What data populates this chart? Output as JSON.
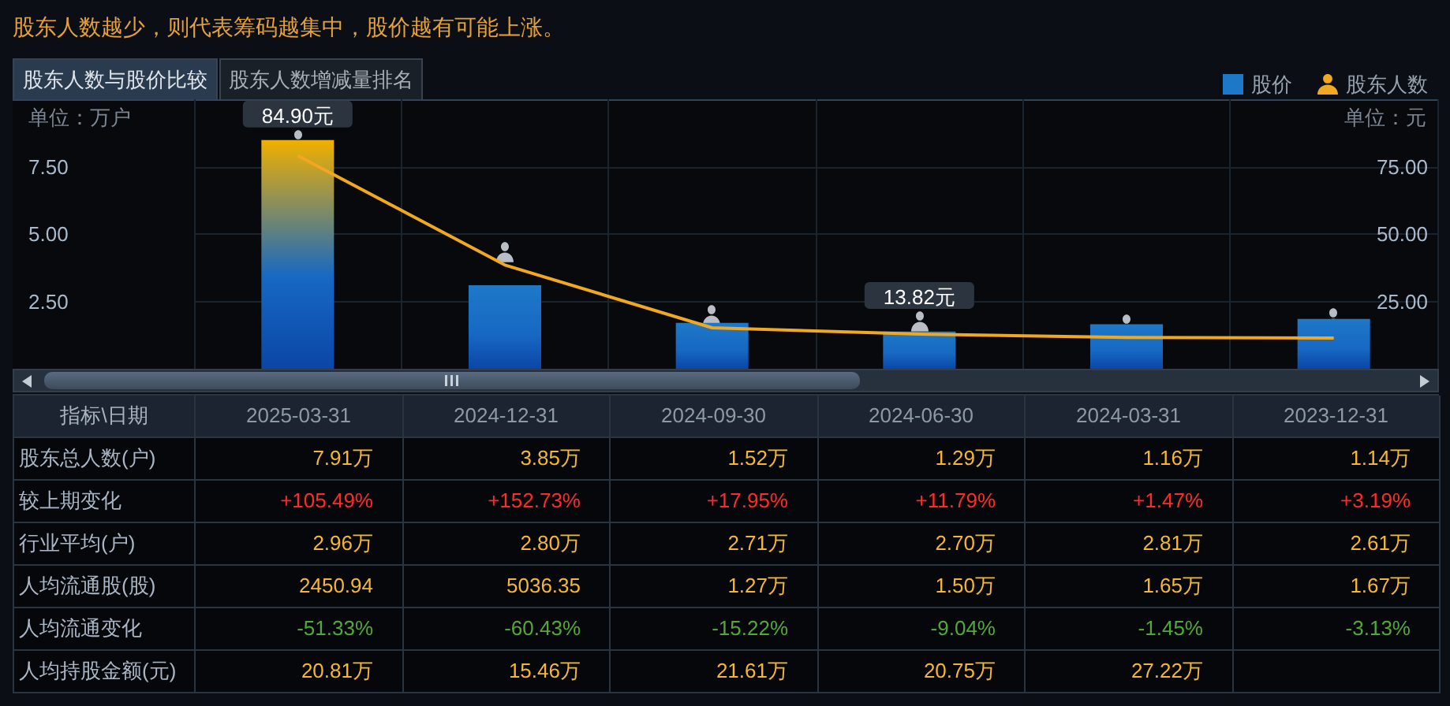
{
  "chart_data": [
    {
      "type": "bar",
      "title": "股东人数越少，则代表筹码越集中，股价越有可能上涨。",
      "subtitle": "股东人数与股价比较",
      "annotations": [
        "股东人数增减量排名"
      ],
      "ylabel": "单位：万户",
      "y2label": "单位：元",
      "categories": [
        null,
        null,
        null,
        null,
        null,
        null
      ],
      "tick_labels": "y",
      "ylim": [
        0,
        10
      ],
      "yticks": [
        {
          "value": 2.5,
          "label": "2.50"
        },
        {
          "value": 5,
          "label": "5.00"
        },
        {
          "value": 7.5,
          "label": "7.50"
        }
      ],
      "y2lim": [
        0,
        100
      ],
      "y2ticks": [
        {
          "value": 25,
          "label": "25.00"
        },
        {
          "value": 50,
          "label": "50.00"
        },
        {
          "value": 75,
          "label": "75.00"
        }
      ],
      "grid": true,
      "legend": "top right",
      "series": [
        {
          "name": "股价",
          "type": "bar",
          "axis": "y2",
          "color": "#1e78c8",
          "colors": [
            "#f0b000",
            "#1e78c8",
            "#1e78c8",
            "#1e78c8",
            "#1e78c8",
            "#1e78c8"
          ],
          "values": [
            84.9,
            31,
            17,
            13.82,
            16.5,
            18.5
          ],
          "value_labels": [
            "84.90元",
            null,
            null,
            "13.82元",
            null,
            null
          ]
        },
        {
          "name": "股东人数",
          "type": "line",
          "axis": "y",
          "color": "#f0a820",
          "values": [
            7.91,
            3.85,
            1.52,
            1.29,
            1.16,
            1.14
          ]
        }
      ]
    },
    {
      "type": "other",
      "title": "指标\\日期",
      "categories": [
        "2025-03-31",
        "2024-12-31",
        "2024-09-30",
        "2024-06-30",
        "2024-03-31",
        "2023-12-31"
      ],
      "series": [
        {
          "name": "股东总人数(户)",
          "values": [
            7.91,
            3.85,
            1.52,
            1.29,
            1.16,
            1.14
          ],
          "value_labels": [
            "7.91万",
            "3.85万",
            "1.52万",
            "1.29万",
            "1.16万",
            "1.14万"
          ]
        },
        {
          "name": "较上期变化",
          "values": [
            105.49,
            152.73,
            17.95,
            11.79,
            1.47,
            3.19
          ],
          "value_labels": [
            "+105.49%",
            "+152.73%",
            "+17.95%",
            "+11.79%",
            "+1.47%",
            "+3.19%"
          ]
        },
        {
          "name": "行业平均(户)",
          "values": [
            2.96,
            2.8,
            2.71,
            2.7,
            2.81,
            2.61
          ],
          "value_labels": [
            "2.96万",
            "2.80万",
            "2.71万",
            "2.70万",
            "2.81万",
            "2.61万"
          ]
        },
        {
          "name": "人均流通股(股)",
          "values": [
            2450.94,
            5036.35,
            1.27,
            1.5,
            1.65,
            1.67
          ],
          "value_labels": [
            "2450.94",
            "5036.35",
            "1.27万",
            "1.50万",
            "1.65万",
            "1.67万"
          ]
        },
        {
          "name": "人均流通变化",
          "values": [
            -51.33,
            -60.43,
            -15.22,
            -9.04,
            -1.45,
            -3.13
          ],
          "value_labels": [
            "-51.33%",
            "-60.43%",
            "-15.22%",
            "-9.04%",
            "-1.45%",
            "-3.13%"
          ]
        },
        {
          "name": "人均持股金额(元)",
          "values": [
            20.81,
            15.46,
            21.61,
            20.75,
            27.22,
            null
          ],
          "value_labels": [
            "20.81万",
            "15.46万",
            "21.61万",
            "20.75万",
            "27.22万",
            null
          ]
        }
      ]
    }
  ]
}
